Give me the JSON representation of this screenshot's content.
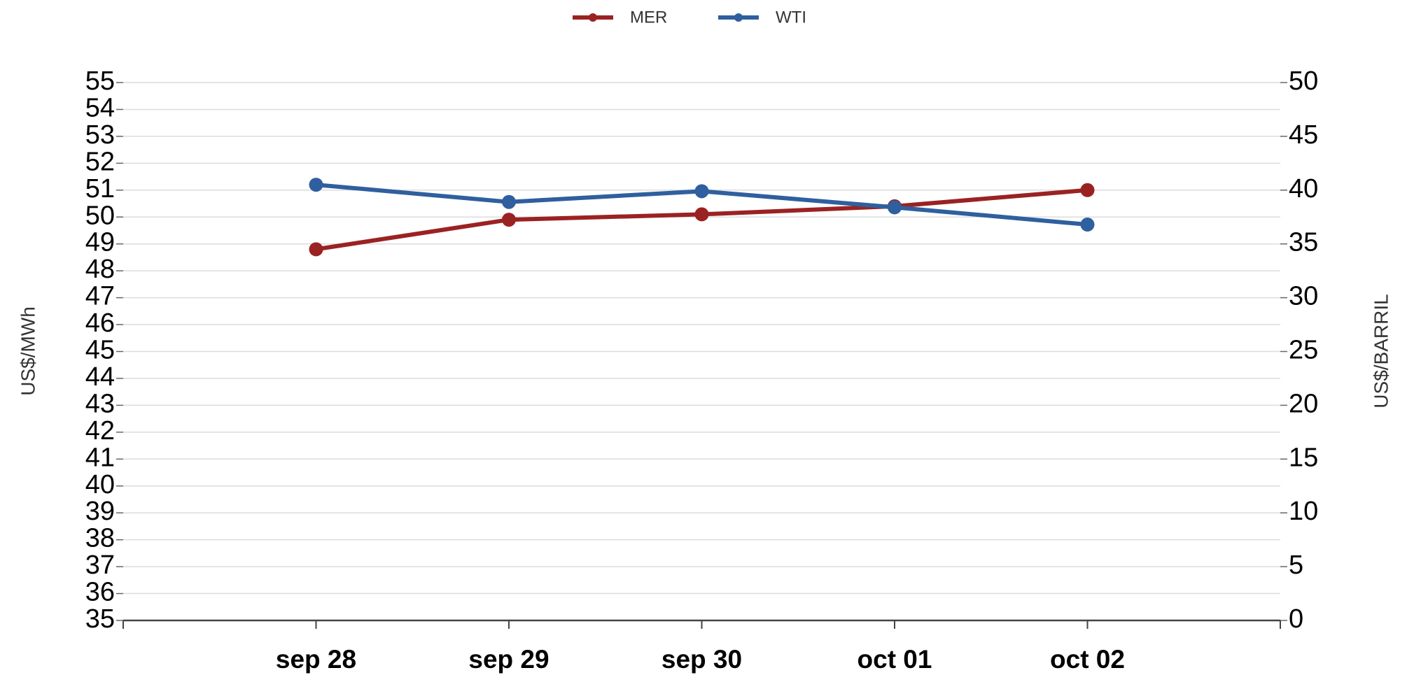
{
  "chart_data": {
    "type": "line",
    "categories": [
      "sep 28",
      "sep 29",
      "sep 30",
      "oct 01",
      "oct 02"
    ],
    "series": [
      {
        "name": "MER",
        "color": "#9b2222",
        "values": [
          48.8,
          49.9,
          50.1,
          50.4,
          51.0
        ]
      },
      {
        "name": "WTI",
        "color": "#2f5f9e",
        "axis": "y2",
        "values": [
          40.5,
          38.9,
          39.9,
          38.4,
          36.8
        ]
      }
    ],
    "ylabel": "US$/MWh",
    "y2label": "US$/BARRIL",
    "ylim": [
      35,
      55
    ],
    "yticks": [
      35,
      36,
      37,
      38,
      39,
      40,
      41,
      42,
      43,
      44,
      45,
      46,
      47,
      48,
      49,
      50,
      51,
      52,
      53,
      54,
      55
    ],
    "y2lim": [
      0,
      50
    ],
    "y2ticks": [
      0,
      5,
      10,
      15,
      20,
      25,
      30,
      35,
      40,
      45,
      50
    ],
    "grid": true,
    "legend": "top"
  }
}
